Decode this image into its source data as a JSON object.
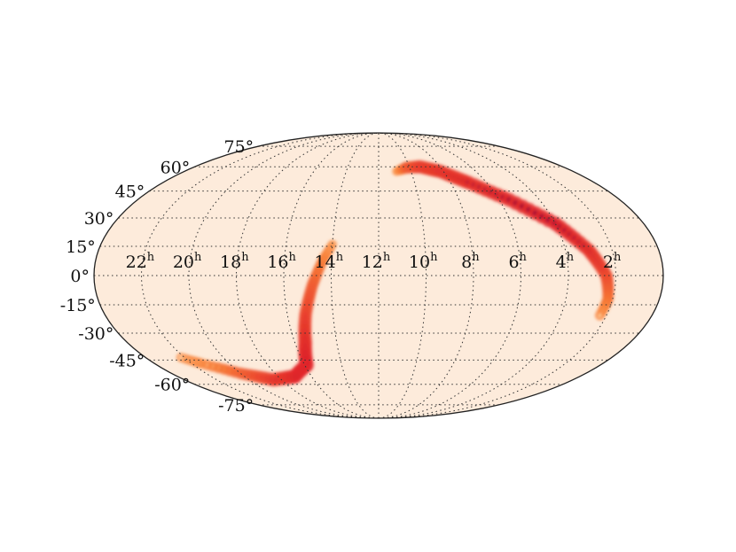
{
  "chart_data": {
    "type": "heatmap",
    "projection": "mollweide",
    "title": "",
    "xlabel": "",
    "ylabel": "",
    "grid": true,
    "x_axis": {
      "quantity": "right ascension",
      "unit": "hours",
      "direction": "decreasing-left-to-right",
      "range": [
        0,
        24
      ],
      "ticks": [
        22,
        20,
        18,
        16,
        14,
        12,
        10,
        8,
        6,
        4,
        2
      ],
      "tick_labels": [
        "22",
        "20",
        "18",
        "16",
        "14",
        "12",
        "10",
        "8",
        "6",
        "4",
        "2"
      ],
      "tick_label_suffix": "h"
    },
    "y_axis": {
      "quantity": "declination",
      "unit": "degrees",
      "range": [
        -90,
        90
      ],
      "ticks": [
        75,
        60,
        45,
        30,
        15,
        0,
        -15,
        -30,
        -45,
        -60,
        -75
      ],
      "tick_labels": [
        "75°",
        "60°",
        "45°",
        "30°",
        "15°",
        "0°",
        "-15°",
        "-30°",
        "-45°",
        "-60°",
        "-75°"
      ]
    },
    "colormap": [
      "#fdebdb",
      "#fdd49e",
      "#f87f36",
      "#e3262a",
      "#9d0b35"
    ],
    "background_color": "#fdebdb",
    "density_arcs": [
      {
        "points": [
          {
            "ra": 10.9,
            "dec": 57.0,
            "density": 0.15
          },
          {
            "ra": 10.2,
            "dec": 59.5,
            "density": 0.6
          },
          {
            "ra": 9.3,
            "dec": 60.0,
            "density": 0.8
          },
          {
            "ra": 8.2,
            "dec": 57.0,
            "density": 0.85
          },
          {
            "ra": 7.0,
            "dec": 50.0,
            "density": 0.9
          },
          {
            "ra": 5.5,
            "dec": 40.0,
            "density": 0.95
          },
          {
            "ra": 4.0,
            "dec": 27.0,
            "density": 1.0
          },
          {
            "ra": 3.0,
            "dec": 13.0,
            "density": 0.9
          },
          {
            "ra": 2.4,
            "dec": 0.0,
            "density": 0.75
          },
          {
            "ra": 2.2,
            "dec": -12.0,
            "density": 0.5
          },
          {
            "ra": 2.3,
            "dec": -22.0,
            "density": 0.25
          }
        ]
      },
      {
        "points": [
          {
            "ra": 14.0,
            "dec": 16.0,
            "density": 0.2
          },
          {
            "ra": 14.4,
            "dec": 7.0,
            "density": 0.4
          },
          {
            "ra": 14.8,
            "dec": -5.0,
            "density": 0.6
          },
          {
            "ra": 15.2,
            "dec": -20.0,
            "density": 0.75
          },
          {
            "ra": 15.5,
            "dec": -35.0,
            "density": 0.9
          },
          {
            "ra": 15.9,
            "dec": -48.0,
            "density": 1.0
          },
          {
            "ra": 17.0,
            "dec": -55.0,
            "density": 1.0
          },
          {
            "ra": 18.5,
            "dec": -57.0,
            "density": 0.85
          },
          {
            "ra": 20.0,
            "dec": -53.0,
            "density": 0.6
          },
          {
            "ra": 21.5,
            "dec": -47.0,
            "density": 0.35
          },
          {
            "ra": 22.3,
            "dec": -43.0,
            "density": 0.2
          }
        ]
      }
    ]
  }
}
